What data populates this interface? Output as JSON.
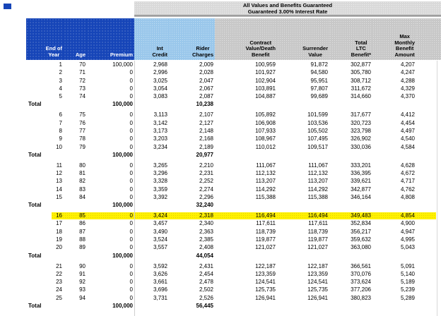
{
  "band": {
    "line1": "All Values and Benefits Guaranteed",
    "line2": "Guaranteed 3.00% Interest Rate"
  },
  "colors": {
    "header_dark_blue": "#1645B8",
    "header_light_blue": "#9AC7EB",
    "header_gray": "#C8C8C8",
    "band_gray": "#D9D9D9",
    "highlight_yellow": "#FFF100",
    "header_blue_text": "#FFFFFF",
    "body_text": "#000000"
  },
  "table": {
    "total_label": "Total",
    "highlight_year": "16",
    "columns": [
      {
        "id": "year",
        "group": "cblue",
        "lines": [
          "End of",
          "Year"
        ]
      },
      {
        "id": "age",
        "group": "cblue",
        "lines": [
          "Age"
        ]
      },
      {
        "id": "premium",
        "group": "cblue",
        "lines": [
          "Premium"
        ]
      },
      {
        "id": "int-credit",
        "group": "clblue",
        "lines": [
          "Int",
          "Credit"
        ]
      },
      {
        "id": "rider-charges",
        "group": "clblue",
        "lines": [
          "Rider",
          "Charges"
        ]
      },
      {
        "id": "contract-value",
        "group": "cgray",
        "lines": [
          "Contract",
          "Value/Death",
          "Benefit"
        ]
      },
      {
        "id": "surrender",
        "group": "cgray",
        "lines": [
          "Surrender",
          "Value"
        ]
      },
      {
        "id": "total-ltc",
        "group": "cgray",
        "lines": [
          "Total",
          "LTC",
          "Benefit*"
        ]
      },
      {
        "id": "max-monthly",
        "group": "cgray",
        "lines": [
          "Max",
          "Monthly",
          "Benefit",
          "Amount"
        ]
      }
    ],
    "groups": [
      {
        "rows": [
          [
            "1",
            "70",
            "100,000",
            "2,968",
            "2,009",
            "100,959",
            "91,872",
            "302,877",
            "4,207"
          ],
          [
            "2",
            "71",
            "0",
            "2,996",
            "2,028",
            "101,927",
            "94,580",
            "305,780",
            "4,247"
          ],
          [
            "3",
            "72",
            "0",
            "3,025",
            "2,047",
            "102,904",
            "95,951",
            "308,712",
            "4,288"
          ],
          [
            "4",
            "73",
            "0",
            "3,054",
            "2,067",
            "103,891",
            "97,807",
            "311,672",
            "4,329"
          ],
          [
            "5",
            "74",
            "0",
            "3,083",
            "2,087",
            "104,887",
            "99,689",
            "314,660",
            "4,370"
          ]
        ],
        "total_premium": "100,000",
        "total_rider_charges": "10,238"
      },
      {
        "rows": [
          [
            "6",
            "75",
            "0",
            "3,113",
            "2,107",
            "105,892",
            "101,599",
            "317,677",
            "4,412"
          ],
          [
            "7",
            "76",
            "0",
            "3,142",
            "2,127",
            "106,908",
            "103,536",
            "320,723",
            "4,454"
          ],
          [
            "8",
            "77",
            "0",
            "3,173",
            "2,148",
            "107,933",
            "105,502",
            "323,798",
            "4,497"
          ],
          [
            "9",
            "78",
            "0",
            "3,203",
            "2,168",
            "108,967",
            "107,495",
            "326,902",
            "4,540"
          ],
          [
            "10",
            "79",
            "0",
            "3,234",
            "2,189",
            "110,012",
            "109,517",
            "330,036",
            "4,584"
          ]
        ],
        "total_premium": "100,000",
        "total_rider_charges": "20,977"
      },
      {
        "rows": [
          [
            "11",
            "80",
            "0",
            "3,265",
            "2,210",
            "111,067",
            "111,067",
            "333,201",
            "4,628"
          ],
          [
            "12",
            "81",
            "0",
            "3,296",
            "2,231",
            "112,132",
            "112,132",
            "336,395",
            "4,672"
          ],
          [
            "13",
            "82",
            "0",
            "3,328",
            "2,252",
            "113,207",
            "113,207",
            "339,621",
            "4,717"
          ],
          [
            "14",
            "83",
            "0",
            "3,359",
            "2,274",
            "114,292",
            "114,292",
            "342,877",
            "4,762"
          ],
          [
            "15",
            "84",
            "0",
            "3,392",
            "2,296",
            "115,388",
            "115,388",
            "346,164",
            "4,808"
          ]
        ],
        "total_premium": "100,000",
        "total_rider_charges": "32,240"
      },
      {
        "rows": [
          [
            "16",
            "85",
            "0",
            "3,424",
            "2,318",
            "116,494",
            "116,494",
            "349,483",
            "4,854"
          ],
          [
            "17",
            "86",
            "0",
            "3,457",
            "2,340",
            "117,611",
            "117,611",
            "352,834",
            "4,900"
          ],
          [
            "18",
            "87",
            "0",
            "3,490",
            "2,363",
            "118,739",
            "118,739",
            "356,217",
            "4,947"
          ],
          [
            "19",
            "88",
            "0",
            "3,524",
            "2,385",
            "119,877",
            "119,877",
            "359,632",
            "4,995"
          ],
          [
            "20",
            "89",
            "0",
            "3,557",
            "2,408",
            "121,027",
            "121,027",
            "363,080",
            "5,043"
          ]
        ],
        "total_premium": "100,000",
        "total_rider_charges": "44,054"
      },
      {
        "rows": [
          [
            "21",
            "90",
            "0",
            "3,592",
            "2,431",
            "122,187",
            "122,187",
            "366,561",
            "5,091"
          ],
          [
            "22",
            "91",
            "0",
            "3,626",
            "2,454",
            "123,359",
            "123,359",
            "370,076",
            "5,140"
          ],
          [
            "23",
            "92",
            "0",
            "3,661",
            "2,478",
            "124,541",
            "124,541",
            "373,624",
            "5,189"
          ],
          [
            "24",
            "93",
            "0",
            "3,696",
            "2,502",
            "125,735",
            "125,735",
            "377,206",
            "5,239"
          ],
          [
            "25",
            "94",
            "0",
            "3,731",
            "2,526",
            "126,941",
            "126,941",
            "380,823",
            "5,289"
          ]
        ],
        "total_premium": "100,000",
        "total_rider_charges": "56,445"
      }
    ]
  }
}
